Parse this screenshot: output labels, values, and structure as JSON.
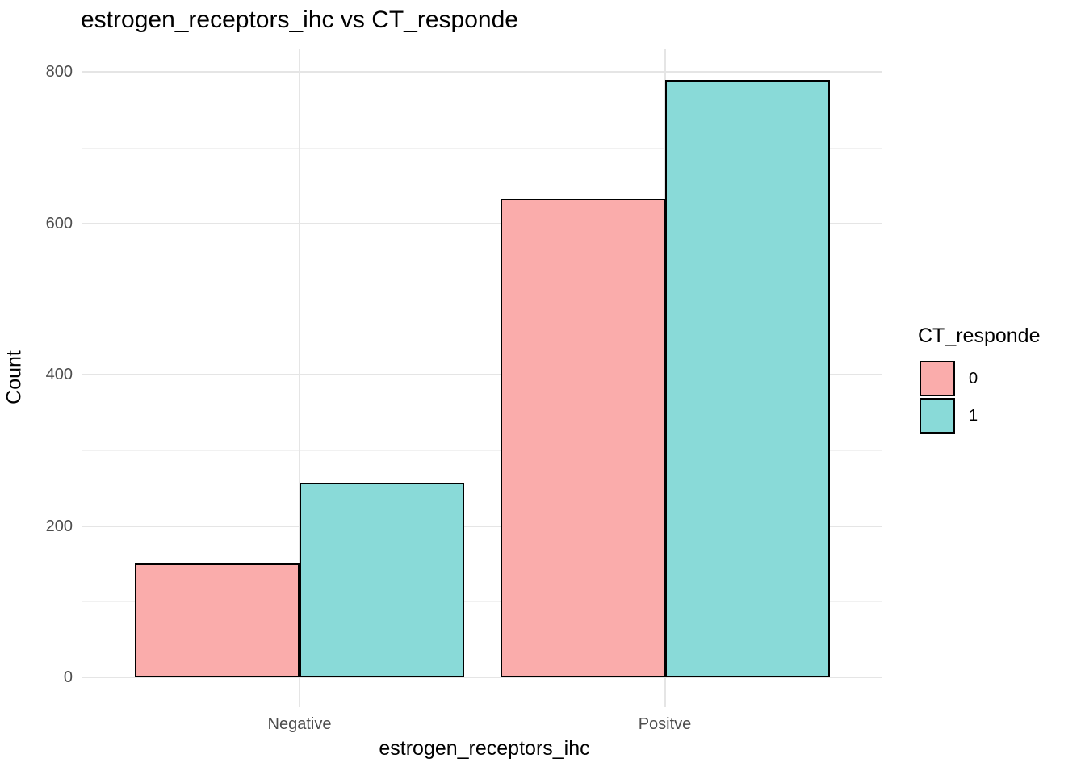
{
  "chart_data": {
    "type": "bar",
    "mode": "grouped",
    "title": "estrogen_receptors_ihc vs CT_responde",
    "xlabel": "estrogen_receptors_ihc",
    "ylabel": "Count",
    "categories": [
      "Negative",
      "Positve"
    ],
    "series": [
      {
        "name": "0",
        "color": "#FAACAB",
        "values": [
          150,
          633
        ]
      },
      {
        "name": "1",
        "color": "#89DAD8",
        "values": [
          257,
          790
        ]
      }
    ],
    "ylim": [
      0,
      800
    ],
    "yticks_major": [
      0,
      200,
      400,
      600,
      800
    ],
    "yticks_minor": [
      100,
      300,
      500,
      700
    ],
    "grid": "major+minor horizontal, major vertical at category centers",
    "legend_title": "CT_responde",
    "legend_position": "right",
    "bar_outline_color": "#000000",
    "background_color": "#FFFFFF",
    "grid_major_color": "#E5E5E5",
    "grid_minor_color": "#F1F1F1",
    "tick_label_color": "#4D4D4D"
  }
}
